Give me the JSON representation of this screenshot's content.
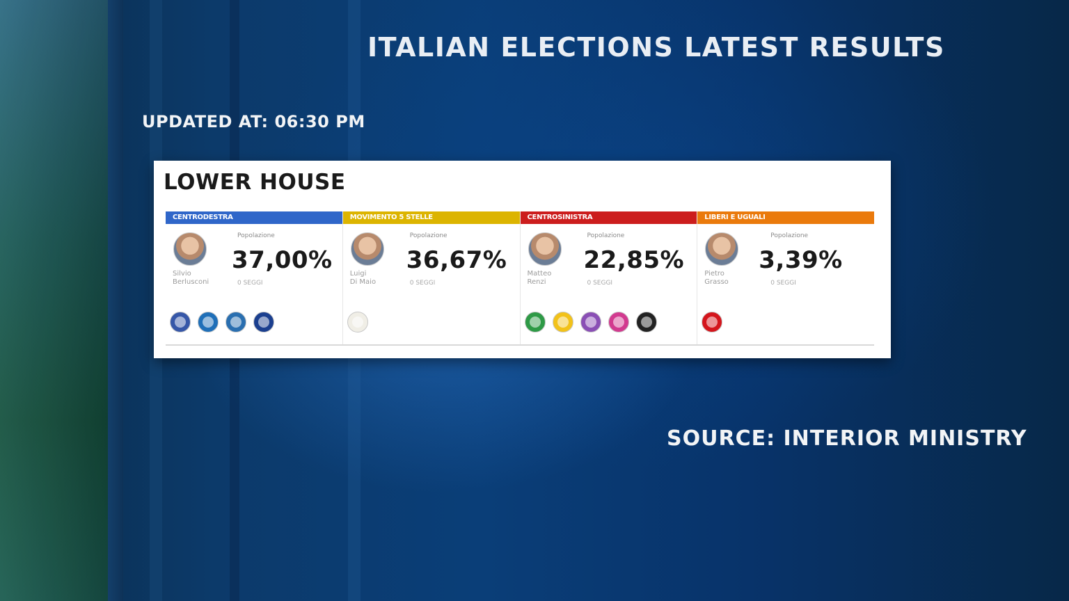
{
  "header": {
    "title": "ITALIAN ELECTIONS LATEST RESULTS",
    "updated": "UPDATED AT: 06:30 PM",
    "source": "SOURCE: INTERIOR MINISTRY"
  },
  "panel": {
    "title": "LOWER HOUSE",
    "columns": [
      {
        "header": "CENTRODESTRA",
        "header_color": "#2f66c9",
        "candidate": "Silvio\nBerlusconi",
        "pop_label": "Popolazione",
        "percent": "37,00%",
        "seats": "0 SEGGI",
        "logos": [
          "#3657a8",
          "#1f6fb8",
          "#2a6fb0",
          "#1b3f8f"
        ]
      },
      {
        "header": "MOVIMENTO 5 STELLE",
        "header_color": "#dcb400",
        "candidate": "Luigi\nDi Maio",
        "pop_label": "Popolazione",
        "percent": "36,67%",
        "seats": "0 SEGGI",
        "logos": [
          "#f0eee6"
        ]
      },
      {
        "header": "CENTROSINISTRA",
        "header_color": "#cc1d1d",
        "candidate": "Matteo\nRenzi",
        "pop_label": "Popolazione",
        "percent": "22,85%",
        "seats": "0 SEGGI",
        "logos": [
          "#2e9a46",
          "#f2c21a",
          "#8a4fb5",
          "#d23a8f",
          "#222222"
        ]
      },
      {
        "header": "LIBERI E UGUALI",
        "header_color": "#ea7a0c",
        "candidate": "Pietro\nGrasso",
        "pop_label": "Popolazione",
        "percent": "3,39%",
        "seats": "0 SEGGI",
        "logos": [
          "#d4151c"
        ]
      }
    ]
  }
}
